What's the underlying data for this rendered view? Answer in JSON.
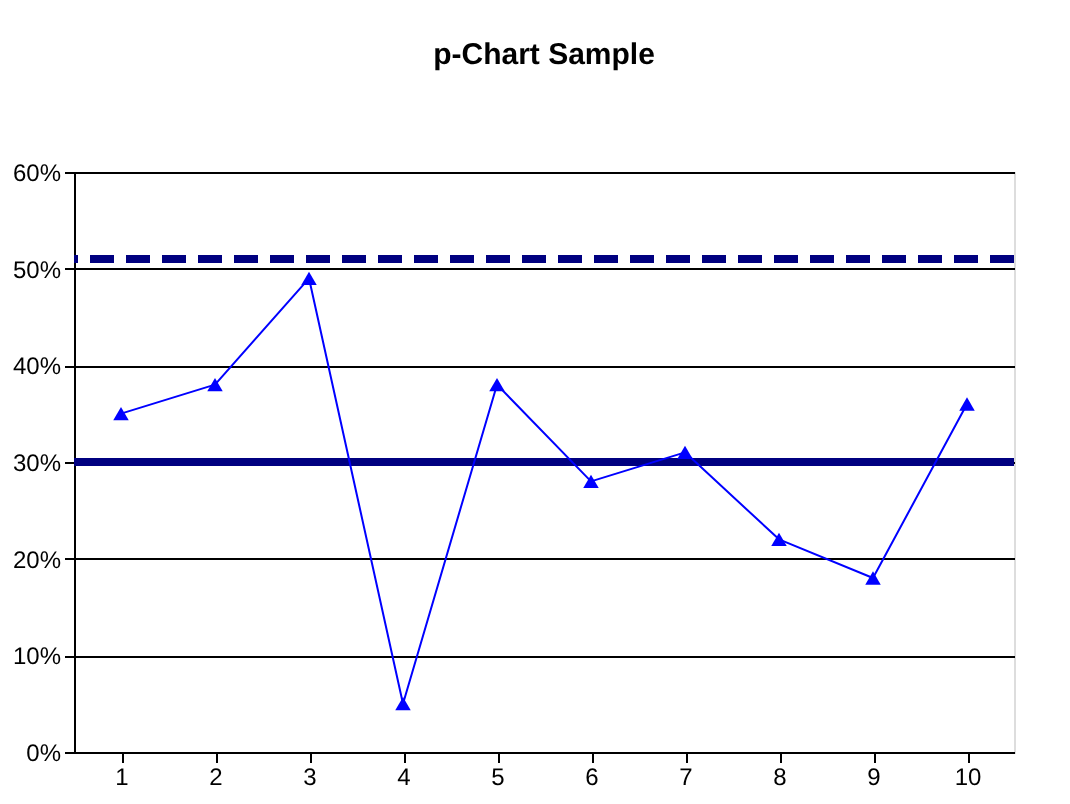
{
  "chart_data": {
    "type": "line",
    "title": "p-Chart Sample",
    "categories": [
      "1",
      "2",
      "3",
      "4",
      "5",
      "6",
      "7",
      "8",
      "9",
      "10"
    ],
    "series": [
      {
        "color": "#0000ff",
        "values": [
          35,
          38,
          49,
          5,
          38,
          28,
          31,
          22,
          18,
          36
        ]
      }
    ],
    "ylim": [
      0,
      60
    ],
    "yticks": [
      {
        "value": 0,
        "label": "0%"
      },
      {
        "value": 10,
        "label": "10%"
      },
      {
        "value": 20,
        "label": "20%"
      },
      {
        "value": 30,
        "label": "30%"
      },
      {
        "value": 40,
        "label": "40%"
      },
      {
        "value": 50,
        "label": "50%"
      },
      {
        "value": 60,
        "label": "60%"
      }
    ],
    "ref_lines": [
      {
        "axis": "y",
        "value": 51,
        "color": "#000080",
        "line_style": "dashed"
      },
      {
        "axis": "y",
        "value": 30,
        "color": "#000080",
        "line_style": "solid"
      }
    ],
    "grid": "y",
    "marker": "triangle",
    "line_style": "solid"
  }
}
